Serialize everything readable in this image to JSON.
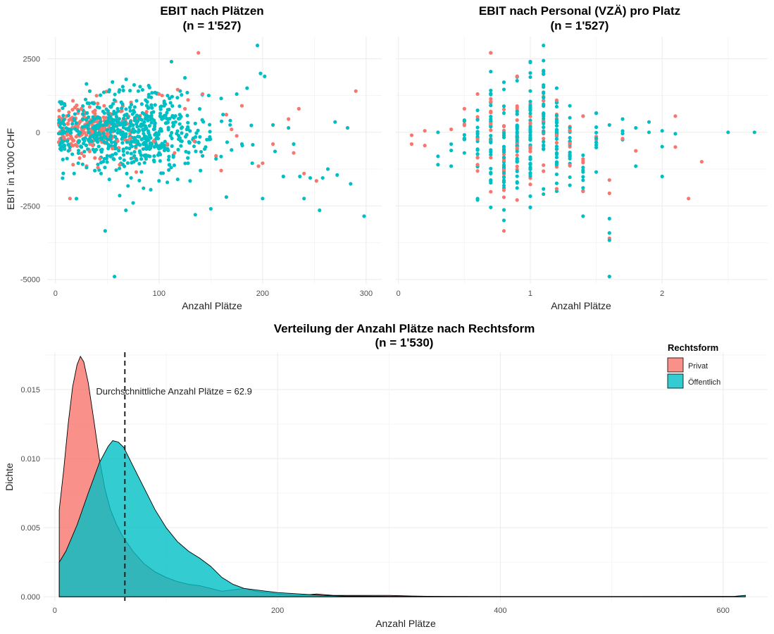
{
  "colors": {
    "privat": "#f8766d",
    "oeffentlich": "#00bfc4"
  },
  "legend": {
    "title": "Rechtsform",
    "position": "top-right",
    "items": [
      {
        "label": "Privat",
        "color": "#f8766d"
      },
      {
        "label": "Öffentlich",
        "color": "#00bfc4"
      }
    ]
  },
  "chart_data": [
    {
      "type": "scatter",
      "title": "EBIT nach Plätzen",
      "subtitle": "(n = 1'527)",
      "xlabel": "Anzahl Plätze",
      "ylabel": "EBIT in 1'000 CHF",
      "xlim": [
        -8,
        315
      ],
      "ylim": [
        -5150,
        3250
      ],
      "x_ticks": [
        0,
        100,
        200,
        300
      ],
      "y_ticks": [
        -5000,
        -2500,
        0,
        2500
      ],
      "y_tick_labels": [
        "-5000",
        "-2500",
        "0",
        "2500"
      ],
      "grid": true,
      "series": [
        {
          "key": "privat",
          "points": [
            [
              14,
              -2250
            ],
            [
              138,
              2700
            ],
            [
              290,
              1400
            ],
            [
              160,
              -1300
            ],
            [
              155,
              -800
            ],
            [
              200,
              -1050
            ],
            [
              235,
              800
            ],
            [
              252,
              -1650
            ],
            [
              17,
              -1100
            ],
            [
              30,
              -1150
            ],
            [
              33,
              -650
            ],
            [
              41,
              -1200
            ],
            [
              62,
              -1100
            ],
            [
              100,
              1300
            ],
            [
              142,
              1300
            ],
            [
              103,
              1250
            ],
            [
              118,
              1450
            ],
            [
              128,
              1100
            ],
            [
              180,
              900
            ],
            [
              175,
              -120
            ],
            [
              165,
              600
            ],
            [
              78,
              -1350
            ],
            [
              170,
              100
            ],
            [
              240,
              -1400
            ],
            [
              95,
              -300
            ],
            [
              88,
              700
            ],
            [
              55,
              -550
            ],
            [
              47,
              900
            ],
            [
              12,
              300
            ],
            [
              20,
              -150
            ],
            [
              8,
              -200
            ],
            [
              25,
              800
            ],
            [
              36,
              -450
            ],
            [
              43,
              -900
            ],
            [
              60,
              -300
            ],
            [
              72,
              -200
            ],
            [
              108,
              -400
            ],
            [
              115,
              -700
            ],
            [
              125,
              800
            ],
            [
              134,
              -300
            ],
            [
              196,
              -1150
            ],
            [
              210,
              -400
            ],
            [
              225,
              450
            ],
            [
              230,
              -700
            ]
          ]
        },
        {
          "key": "oeffentlich",
          "points": [
            [
              57,
              -4900
            ],
            [
              48,
              -3350
            ],
            [
              135,
              -2800
            ],
            [
              150,
              -2600
            ],
            [
              195,
              2950
            ],
            [
              198,
              2000
            ],
            [
              202,
              1900
            ],
            [
              112,
              2400
            ],
            [
              125,
              1850
            ],
            [
              148,
              1250
            ],
            [
              160,
              1150
            ],
            [
              175,
              1300
            ],
            [
              185,
              1500
            ],
            [
              255,
              -2650
            ],
            [
              263,
              -1250
            ],
            [
              272,
              -1450
            ],
            [
              298,
              -2850
            ],
            [
              285,
              -1750
            ],
            [
              220,
              -1500
            ],
            [
              236,
              -1500
            ],
            [
              240,
              -2250
            ],
            [
              200,
              -2250
            ],
            [
              165,
              -2200
            ],
            [
              180,
              -400
            ],
            [
              190,
              -1050
            ],
            [
              212,
              -650
            ],
            [
              230,
              -400
            ],
            [
              246,
              -1550
            ],
            [
              258,
              -1550
            ],
            [
              85,
              -1900
            ],
            [
              92,
              -1950
            ],
            [
              100,
              -1650
            ],
            [
              108,
              -1700
            ],
            [
              118,
              -1600
            ],
            [
              130,
              -1650
            ],
            [
              140,
              -1300
            ],
            [
              68,
              -2650
            ],
            [
              75,
              -2400
            ],
            [
              62,
              -2150
            ],
            [
              52,
              -1600
            ],
            [
              44,
              -1400
            ],
            [
              38,
              -1300
            ],
            [
              30,
              -1200
            ],
            [
              22,
              -1050
            ],
            [
              18,
              -1400
            ],
            [
              65,
              1550
            ],
            [
              80,
              1400
            ],
            [
              90,
              1200
            ],
            [
              105,
              900
            ],
            [
              120,
              600
            ],
            [
              135,
              300
            ],
            [
              145,
              -500
            ],
            [
              155,
              -900
            ],
            [
              170,
              -600
            ],
            [
              210,
              250
            ],
            [
              225,
              150
            ],
            [
              270,
              350
            ],
            [
              282,
              150
            ],
            [
              60,
              800
            ],
            [
              70,
              500
            ],
            [
              40,
              200
            ],
            [
              35,
              -300
            ],
            [
              50,
              -800
            ],
            [
              95,
              -950
            ],
            [
              110,
              -1100
            ],
            [
              128,
              -1050
            ],
            [
              142,
              -800
            ],
            [
              73,
              -1550
            ]
          ]
        }
      ],
      "scatter_clusters": [
        {
          "key": "privat",
          "cx": 35,
          "sx": 22,
          "cy": 100,
          "sy": 420,
          "count": 260,
          "seed": 11
        },
        {
          "key": "oeffentlich",
          "cx": 70,
          "sx": 38,
          "cy": 0,
          "sy": 620,
          "count": 620,
          "seed": 23
        }
      ]
    },
    {
      "type": "scatter",
      "title": "EBIT nach Personal (VZÄ) pro Platz",
      "subtitle": "(n = 1'527)",
      "xlabel": "Anzahl Plätze",
      "ylabel": "",
      "xlim": [
        -0.02,
        2.8
      ],
      "ylim": [
        -5150,
        3250
      ],
      "x_ticks": [
        0,
        1,
        2
      ],
      "y_ticks": [
        -5000,
        -2500,
        0,
        2500
      ],
      "grid": true,
      "columns": [
        {
          "x": 0.1,
          "ymin": -400,
          "ymax": -100,
          "n": 2,
          "key": "privat"
        },
        {
          "x": 0.2,
          "ymin": -450,
          "ymax": 50,
          "n": 2,
          "key": "mix"
        },
        {
          "x": 0.3,
          "ymin": -1100,
          "ymax": 0,
          "n": 3,
          "key": "oeffentlich"
        },
        {
          "x": 0.4,
          "ymin": -1150,
          "ymax": 100,
          "n": 4,
          "key": "mix"
        },
        {
          "x": 0.5,
          "ymin": -700,
          "ymax": 800,
          "n": 12,
          "key": "mix"
        },
        {
          "x": 0.6,
          "ymin": -2300,
          "ymax": 1300,
          "n": 26,
          "key": "mix"
        },
        {
          "x": 0.7,
          "ymin": -2550,
          "ymax": 2700,
          "n": 40,
          "key": "mix"
        },
        {
          "x": 0.8,
          "ymin": -3350,
          "ymax": 1700,
          "n": 52,
          "key": "mix"
        },
        {
          "x": 0.9,
          "ymin": -2300,
          "ymax": 1900,
          "n": 50,
          "key": "mix"
        },
        {
          "x": 1.0,
          "ymin": -2550,
          "ymax": 2400,
          "n": 60,
          "key": "mix"
        },
        {
          "x": 1.1,
          "ymin": -2100,
          "ymax": 2950,
          "n": 46,
          "key": "mix"
        },
        {
          "x": 1.2,
          "ymin": -2000,
          "ymax": 1500,
          "n": 36,
          "key": "mix"
        },
        {
          "x": 1.3,
          "ymin": -1800,
          "ymax": 900,
          "n": 24,
          "key": "mix"
        },
        {
          "x": 1.4,
          "ymin": -2850,
          "ymax": 550,
          "n": 16,
          "key": "mix"
        },
        {
          "x": 1.5,
          "ymin": -1350,
          "ymax": 650,
          "n": 12,
          "key": "mix"
        },
        {
          "x": 1.6,
          "ymin": -4900,
          "ymax": 250,
          "n": 9,
          "key": "mix"
        },
        {
          "x": 1.7,
          "ymin": -250,
          "ymax": 450,
          "n": 5,
          "key": "mix"
        },
        {
          "x": 1.8,
          "ymin": -1150,
          "ymax": 150,
          "n": 3,
          "key": "mix"
        },
        {
          "x": 1.9,
          "ymin": 0,
          "ymax": 350,
          "n": 2,
          "key": "oeffentlich"
        },
        {
          "x": 2.0,
          "ymin": -1500,
          "ymax": 50,
          "n": 3,
          "key": "mix"
        },
        {
          "x": 2.1,
          "ymin": -500,
          "ymax": 550,
          "n": 3,
          "key": "mix"
        },
        {
          "x": 2.2,
          "ymin": -2250,
          "ymax": -2250,
          "n": 1,
          "key": "privat"
        },
        {
          "x": 2.3,
          "ymin": -1000,
          "ymax": -1000,
          "n": 1,
          "key": "privat"
        },
        {
          "x": 2.5,
          "ymin": 0,
          "ymax": 0,
          "n": 1,
          "key": "oeffentlich"
        },
        {
          "x": 2.7,
          "ymin": 0,
          "ymax": 0,
          "n": 1,
          "key": "oeffentlich"
        }
      ]
    },
    {
      "type": "area",
      "title": "Verteilung der Anzahl Plätze nach Rechtsform",
      "subtitle": "(n = 1'530)",
      "xlabel": "Anzahl Plätze",
      "ylabel": "Dichte",
      "xlim": [
        -10,
        640
      ],
      "ylim": [
        -0.0003,
        0.0177
      ],
      "x_ticks": [
        0,
        200,
        400,
        600
      ],
      "y_ticks": [
        0,
        0.005,
        0.01,
        0.015
      ],
      "y_tick_labels": [
        "0.000",
        "0.005",
        "0.010",
        "0.015"
      ],
      "grid": true,
      "annotation": {
        "text": "Durchschnittliche Anzahl Plätze = 62.9",
        "x": 37,
        "y": 0.0149
      },
      "mean_line": {
        "x": 62.9
      },
      "series": [
        {
          "key": "privat",
          "name": "Privat",
          "points": [
            [
              4,
              0.0063
            ],
            [
              8,
              0.0092
            ],
            [
              12,
              0.0125
            ],
            [
              16,
              0.0152
            ],
            [
              20,
              0.0168
            ],
            [
              23,
              0.0174
            ],
            [
              26,
              0.017
            ],
            [
              30,
              0.0155
            ],
            [
              35,
              0.0128
            ],
            [
              40,
              0.01
            ],
            [
              45,
              0.0078
            ],
            [
              50,
              0.0063
            ],
            [
              55,
              0.0053
            ],
            [
              60,
              0.0045
            ],
            [
              70,
              0.0033
            ],
            [
              80,
              0.0024
            ],
            [
              90,
              0.0018
            ],
            [
              100,
              0.0014
            ],
            [
              110,
              0.0011
            ],
            [
              120,
              0.0009
            ],
            [
              130,
              0.0008
            ],
            [
              140,
              0.0006
            ],
            [
              150,
              0.0004
            ],
            [
              160,
              0.0005
            ],
            [
              170,
              0.0006
            ],
            [
              180,
              0.0004
            ],
            [
              190,
              0.0003
            ],
            [
              200,
              0.0002
            ],
            [
              220,
              0.0001
            ],
            [
              235,
              0.0002
            ],
            [
              250,
              0.0001
            ],
            [
              270,
              0.0001
            ],
            [
              300,
              0.0001
            ],
            [
              320,
              5e-05
            ],
            [
              360,
              0
            ],
            [
              620,
              0
            ]
          ]
        },
        {
          "key": "oeffentlich",
          "name": "Öffentlich",
          "points": [
            [
              4,
              0.0025
            ],
            [
              10,
              0.0033
            ],
            [
              20,
              0.0052
            ],
            [
              30,
              0.0075
            ],
            [
              40,
              0.0097
            ],
            [
              48,
              0.0109
            ],
            [
              52,
              0.0113
            ],
            [
              57,
              0.0112
            ],
            [
              62,
              0.0108
            ],
            [
              70,
              0.0095
            ],
            [
              80,
              0.0079
            ],
            [
              90,
              0.0063
            ],
            [
              100,
              0.005
            ],
            [
              110,
              0.004
            ],
            [
              120,
              0.0033
            ],
            [
              130,
              0.0028
            ],
            [
              140,
              0.0022
            ],
            [
              150,
              0.0014
            ],
            [
              160,
              0.0009
            ],
            [
              170,
              0.0006
            ],
            [
              180,
              0.0005
            ],
            [
              190,
              0.0004
            ],
            [
              200,
              0.0003
            ],
            [
              220,
              0.0002
            ],
            [
              240,
              0.0001
            ],
            [
              260,
              5e-05
            ],
            [
              300,
              3e-05
            ],
            [
              400,
              2e-05
            ],
            [
              500,
              2e-05
            ],
            [
              610,
              3e-05
            ],
            [
              620,
              0.0001
            ]
          ]
        }
      ]
    }
  ]
}
